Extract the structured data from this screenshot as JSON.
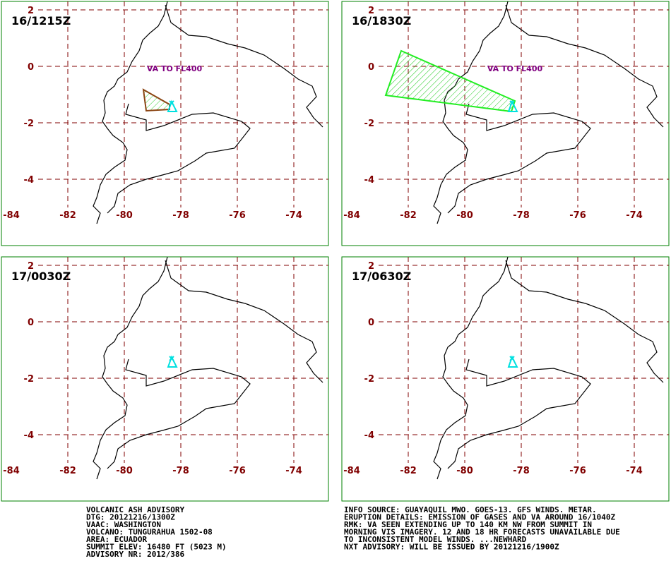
{
  "panels": [
    {
      "time": "16/1215Z",
      "label": "VA TO FL400"
    },
    {
      "time": "16/1830Z",
      "label": "VA TO FL400"
    },
    {
      "time": "17/0030Z"
    },
    {
      "time": "17/0630Z"
    }
  ],
  "axes": {
    "lon_ticks": [
      -84,
      -82,
      -80,
      -78,
      -76,
      -74
    ],
    "lat_ticks": [
      2,
      0,
      -2,
      -4
    ]
  },
  "advisory": {
    "left": [
      "VOLCANIC ASH ADVISORY",
      "DTG: 20121216/1300Z",
      "VAAC: WASHINGTON",
      "VOLCANO: TUNGURAHUA 1502-08",
      "AREA: ECUADOR",
      "SUMMIT ELEV: 16480 FT (5023 M)",
      "ADVISORY NR: 2012/386"
    ],
    "right": [
      "INFO SOURCE: GUAYAQUIL MWO. GOES-13. GFS WINDS. METAR.",
      "ERUPTION DETAILS: EMISSION OF GASES AND VA AROUND 16/1040Z",
      "RMK: VA SEEN EXTENDING UP TO 140 KM NW FROM SUMMIT IN",
      "MORNING VIS IMAGERY. 12 AND 18 HR FORECASTS UNAVAILABLE DUE",
      "TO INCONSISTENT MODEL WINDS. ...NEWHARD",
      "NXT ADVISORY: WILL BE ISSUED BY 20121216/1900Z"
    ]
  }
}
